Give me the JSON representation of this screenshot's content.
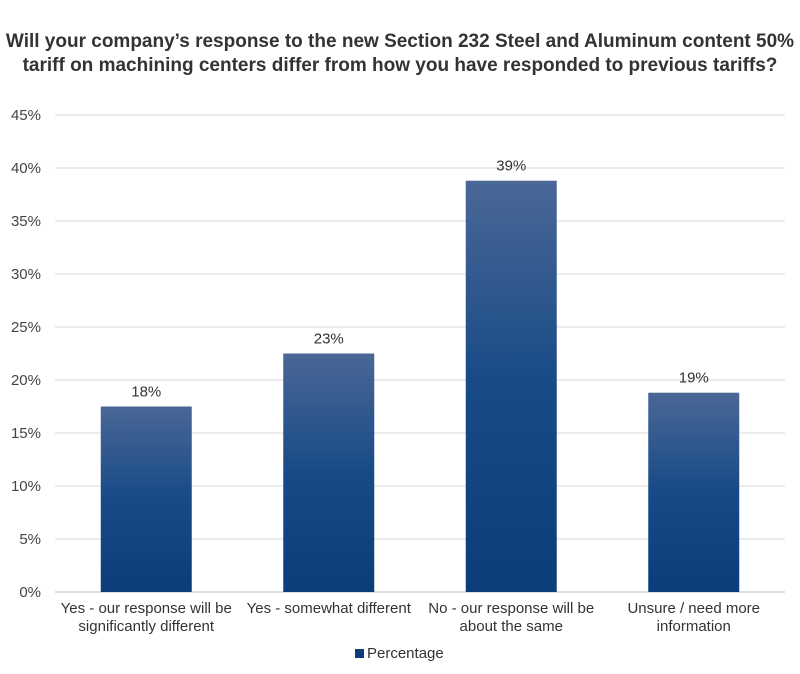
{
  "chart_data": {
    "type": "bar",
    "title_lines": [
      "Will your company’s response to the new Section 232 Steel and Aluminum content 50%",
      "tariff on machining centers differ from how you have responded to previous tariffs?"
    ],
    "categories": [
      [
        "Yes - our response will be",
        "significantly different"
      ],
      [
        "Yes -  somewhat different"
      ],
      [
        "No - our response will be",
        "about the same"
      ],
      [
        "Unsure / need more",
        "information"
      ]
    ],
    "series": [
      {
        "name": "Percentage",
        "values": [
          17.5,
          22.5,
          38.8,
          18.8
        ],
        "color": "#0b3d7a"
      }
    ],
    "data_labels": [
      "18%",
      "23%",
      "39%",
      "19%"
    ],
    "y_ticks": [
      "0%",
      "5%",
      "10%",
      "15%",
      "20%",
      "25%",
      "30%",
      "35%",
      "40%",
      "45%"
    ],
    "ylim": [
      0,
      45
    ],
    "grid": true,
    "legend_position": "bottom"
  }
}
